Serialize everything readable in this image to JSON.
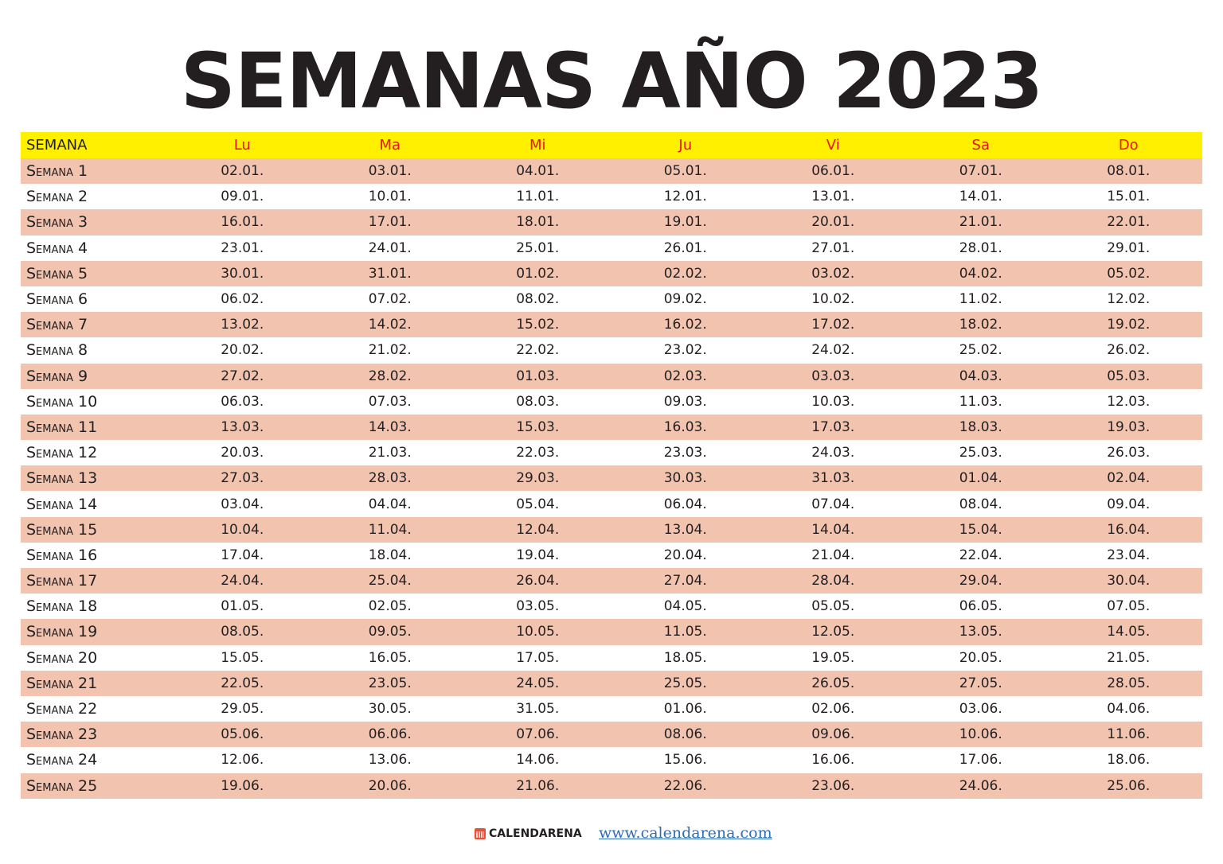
{
  "title": "SEMANAS AÑO 2023",
  "header": {
    "week": "SEMANA",
    "days": [
      "Lu",
      "Ma",
      "Mi",
      "Ju",
      "Vi",
      "Sa",
      "Do"
    ]
  },
  "colors": {
    "header_bg": "#fff000",
    "day_header_text": "#e8141c",
    "stripe": "#f2c4b0"
  },
  "rows": [
    {
      "week": "Semana 1",
      "dates": [
        "02.01.",
        "03.01.",
        "04.01.",
        "05.01.",
        "06.01.",
        "07.01.",
        "08.01."
      ]
    },
    {
      "week": "Semana 2",
      "dates": [
        "09.01.",
        "10.01.",
        "11.01.",
        "12.01.",
        "13.01.",
        "14.01.",
        "15.01."
      ]
    },
    {
      "week": "Semana 3",
      "dates": [
        "16.01.",
        "17.01.",
        "18.01.",
        "19.01.",
        "20.01.",
        "21.01.",
        "22.01."
      ]
    },
    {
      "week": "Semana 4",
      "dates": [
        "23.01.",
        "24.01.",
        "25.01.",
        "26.01.",
        "27.01.",
        "28.01.",
        "29.01."
      ]
    },
    {
      "week": "Semana 5",
      "dates": [
        "30.01.",
        "31.01.",
        "01.02.",
        "02.02.",
        "03.02.",
        "04.02.",
        "05.02."
      ]
    },
    {
      "week": "Semana 6",
      "dates": [
        "06.02.",
        "07.02.",
        "08.02.",
        "09.02.",
        "10.02.",
        "11.02.",
        "12.02."
      ]
    },
    {
      "week": "Semana 7",
      "dates": [
        "13.02.",
        "14.02.",
        "15.02.",
        "16.02.",
        "17.02.",
        "18.02.",
        "19.02."
      ]
    },
    {
      "week": "Semana 8",
      "dates": [
        "20.02.",
        "21.02.",
        "22.02.",
        "23.02.",
        "24.02.",
        "25.02.",
        "26.02."
      ]
    },
    {
      "week": "Semana 9",
      "dates": [
        "27.02.",
        "28.02.",
        "01.03.",
        "02.03.",
        "03.03.",
        "04.03.",
        "05.03."
      ]
    },
    {
      "week": "Semana 10",
      "dates": [
        "06.03.",
        "07.03.",
        "08.03.",
        "09.03.",
        "10.03.",
        "11.03.",
        "12.03."
      ]
    },
    {
      "week": "Semana 11",
      "dates": [
        "13.03.",
        "14.03.",
        "15.03.",
        "16.03.",
        "17.03.",
        "18.03.",
        "19.03."
      ]
    },
    {
      "week": "Semana 12",
      "dates": [
        "20.03.",
        "21.03.",
        "22.03.",
        "23.03.",
        "24.03.",
        "25.03.",
        "26.03."
      ]
    },
    {
      "week": "Semana 13",
      "dates": [
        "27.03.",
        "28.03.",
        "29.03.",
        "30.03.",
        "31.03.",
        "01.04.",
        "02.04."
      ]
    },
    {
      "week": "Semana 14",
      "dates": [
        "03.04.",
        "04.04.",
        "05.04.",
        "06.04.",
        "07.04.",
        "08.04.",
        "09.04."
      ]
    },
    {
      "week": "Semana 15",
      "dates": [
        "10.04.",
        "11.04.",
        "12.04.",
        "13.04.",
        "14.04.",
        "15.04.",
        "16.04."
      ]
    },
    {
      "week": "Semana 16",
      "dates": [
        "17.04.",
        "18.04.",
        "19.04.",
        "20.04.",
        "21.04.",
        "22.04.",
        "23.04."
      ]
    },
    {
      "week": "Semana 17",
      "dates": [
        "24.04.",
        "25.04.",
        "26.04.",
        "27.04.",
        "28.04.",
        "29.04.",
        "30.04."
      ]
    },
    {
      "week": "Semana 18",
      "dates": [
        "01.05.",
        "02.05.",
        "03.05.",
        "04.05.",
        "05.05.",
        "06.05.",
        "07.05."
      ]
    },
    {
      "week": "Semana 19",
      "dates": [
        "08.05.",
        "09.05.",
        "10.05.",
        "11.05.",
        "12.05.",
        "13.05.",
        "14.05."
      ]
    },
    {
      "week": "Semana 20",
      "dates": [
        "15.05.",
        "16.05.",
        "17.05.",
        "18.05.",
        "19.05.",
        "20.05.",
        "21.05."
      ]
    },
    {
      "week": "Semana 21",
      "dates": [
        "22.05.",
        "23.05.",
        "24.05.",
        "25.05.",
        "26.05.",
        "27.05.",
        "28.05."
      ]
    },
    {
      "week": "Semana 22",
      "dates": [
        "29.05.",
        "30.05.",
        "31.05.",
        "01.06.",
        "02.06.",
        "03.06.",
        "04.06."
      ]
    },
    {
      "week": "Semana 23",
      "dates": [
        "05.06.",
        "06.06.",
        "07.06.",
        "08.06.",
        "09.06.",
        "10.06.",
        "11.06."
      ]
    },
    {
      "week": "Semana 24",
      "dates": [
        "12.06.",
        "13.06.",
        "14.06.",
        "15.06.",
        "16.06.",
        "17.06.",
        "18.06."
      ]
    },
    {
      "week": "Semana 25",
      "dates": [
        "19.06.",
        "20.06.",
        "21.06.",
        "22.06.",
        "23.06.",
        "24.06.",
        "25.06."
      ]
    }
  ],
  "footer": {
    "brand": "CALENDARENA",
    "url": "www.calendarena.com",
    "brand_icon": "calendar-icon"
  }
}
